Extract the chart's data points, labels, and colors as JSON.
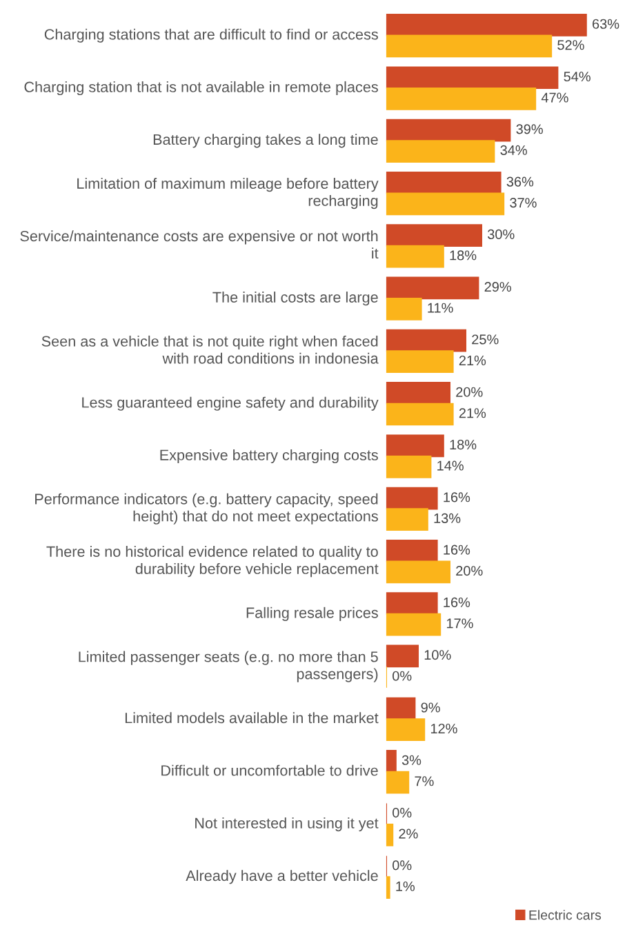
{
  "chart_data": {
    "type": "bar",
    "orientation": "horizontal",
    "legend": "bottom right",
    "categories": [
      "Charging stations that are difficult to find or access",
      "Charging station that is not available in remote places",
      "Battery charging takes a long time",
      "Limitation of maximum mileage before battery recharging",
      "Service/maintenance costs are expensive or not worth it",
      "The initial costs are large",
      "Seen as a vehicle that is not quite right when faced with road conditions in indonesia",
      "Less guaranteed engine safety and durability",
      "Expensive battery charging costs",
      "Performance indicators (e.g. battery capacity, speed height) that do not meet expectations",
      "There is no historical evidence related to quality to durability before vehicle replacement",
      "Falling resale prices",
      "Limited passenger seats (e.g. no more than 5 passengers)",
      "Limited models available in the market",
      "Difficult or uncomfortable to drive",
      "Not interested in using it yet",
      "Already have a better vehicle"
    ],
    "series": [
      {
        "name": "Electric cars",
        "color": "#d04a27",
        "values": [
          63,
          54,
          39,
          36,
          30,
          29,
          25,
          20,
          18,
          16,
          16,
          16,
          10,
          9,
          3,
          0,
          0
        ],
        "value_labels": [
          "63%",
          "54%",
          "39%",
          "36%",
          "30%",
          "29%",
          "25%",
          "20%",
          "18%",
          "16%",
          "16%",
          "16%",
          "10%",
          "9%",
          "3%",
          "0%",
          "0%"
        ]
      },
      {
        "color": "#fbb41a",
        "values": [
          52,
          47,
          34,
          37,
          18,
          11,
          21,
          21,
          14,
          13,
          20,
          17,
          0,
          12,
          7,
          2,
          1
        ],
        "value_labels": [
          "52%",
          "47%",
          "34%",
          "37%",
          "18%",
          "11%",
          "21%",
          "21%",
          "14%",
          "13%",
          "20%",
          "17%",
          "0%",
          "12%",
          "7%",
          "2%",
          "1%"
        ]
      }
    ]
  }
}
